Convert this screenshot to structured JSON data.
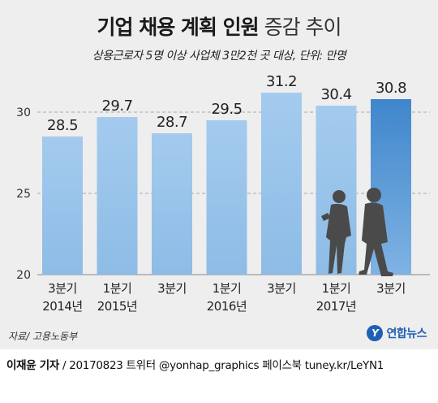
{
  "header": {
    "title_bold": "기업 채용 계획 인원",
    "title_light": "증감 추이",
    "subtitle": "상용근로자 5명 이상 사업체 3만2천 곳 대상, 단위: 만명"
  },
  "colors": {
    "bar": "#8dbce6",
    "bar_highlight": "#3f86cc",
    "background": "#eeeeee",
    "grid": "#aaaaaa"
  },
  "chart_data": {
    "type": "bar",
    "categories": [
      [
        "3분기",
        "2014년"
      ],
      [
        "1분기",
        "2015년"
      ],
      [
        "3분기",
        ""
      ],
      [
        "1분기",
        "2016년"
      ],
      [
        "3분기",
        ""
      ],
      [
        "1분기",
        "2017년"
      ],
      [
        "3분기",
        ""
      ]
    ],
    "values": [
      28.5,
      29.7,
      28.7,
      29.5,
      31.2,
      30.4,
      30.8
    ],
    "value_labels": [
      "28.5",
      "29.7",
      "28.7",
      "29.5",
      "31.2",
      "30.4",
      "30.8"
    ],
    "yticks": [
      "20",
      "25",
      "30"
    ],
    "ylim": [
      20,
      32
    ],
    "grid": true,
    "highlight_index": 6
  },
  "footer": {
    "source": "자료/ 고용노동부",
    "logo_text": "연합뉴스",
    "logo_mark": "Y",
    "reporter": "이재윤 기자",
    "credit": " / 20170823  트위터 @yonhap_graphics  페이스북 tuney.kr/LeYN1"
  }
}
